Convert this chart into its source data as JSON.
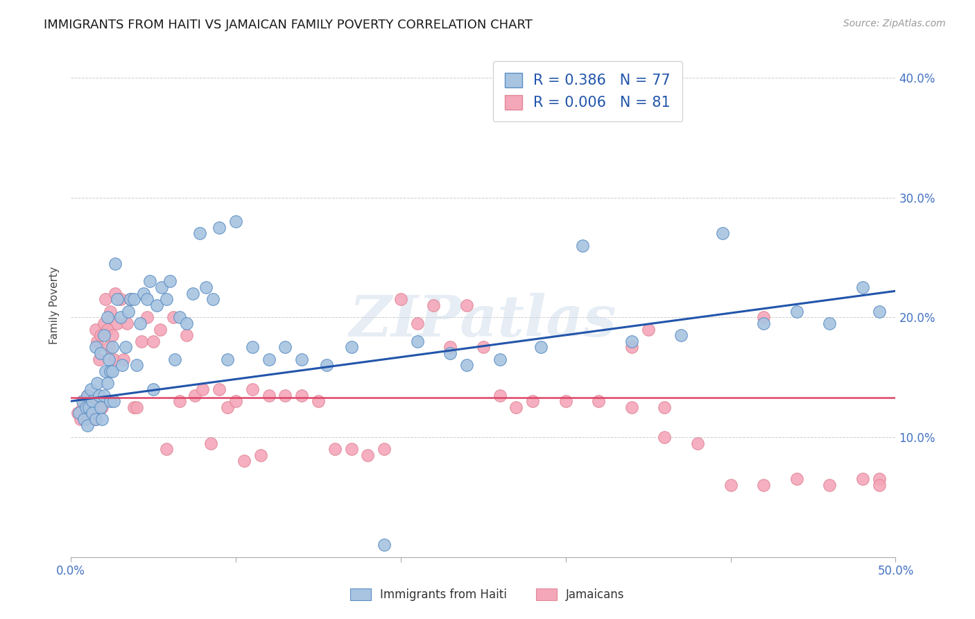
{
  "title": "IMMIGRANTS FROM HAITI VS JAMAICAN FAMILY POVERTY CORRELATION CHART",
  "source": "Source: ZipAtlas.com",
  "ylabel": "Family Poverty",
  "legend_label_blue": "Immigrants from Haiti",
  "legend_label_pink": "Jamaicans",
  "watermark": "ZIPatlas",
  "R_blue": 0.386,
  "N_blue": 77,
  "R_pink": 0.006,
  "N_pink": 81,
  "xlim": [
    0.0,
    0.5
  ],
  "ylim": [
    0.0,
    0.42
  ],
  "yticks": [
    0.1,
    0.2,
    0.3,
    0.4
  ],
  "ytick_labels": [
    "10.0%",
    "20.0%",
    "30.0%",
    "40.0%"
  ],
  "xticks": [
    0.0,
    0.1,
    0.2,
    0.3,
    0.4,
    0.5
  ],
  "xtick_labels": [
    "0.0%",
    "",
    "",
    "",
    "",
    "50.0%"
  ],
  "color_blue": "#a8c4e0",
  "color_pink": "#f4a7b9",
  "edge_blue": "#5b8ec4",
  "edge_pink": "#e08898",
  "line_color_blue": "#2255aa",
  "line_color_pink": "#dd4466",
  "axis_color": "#4472c4",
  "background_color": "#ffffff",
  "grid_color": "#cccccc",
  "blue_line_start_y": 0.13,
  "blue_line_end_y": 0.222,
  "pink_line_y": 0.133,
  "blue_points_x": [
    0.005,
    0.007,
    0.008,
    0.009,
    0.01,
    0.01,
    0.011,
    0.012,
    0.013,
    0.013,
    0.015,
    0.015,
    0.016,
    0.017,
    0.018,
    0.018,
    0.019,
    0.02,
    0.02,
    0.021,
    0.022,
    0.022,
    0.023,
    0.024,
    0.024,
    0.025,
    0.025,
    0.026,
    0.027,
    0.028,
    0.03,
    0.031,
    0.033,
    0.035,
    0.036,
    0.038,
    0.04,
    0.042,
    0.044,
    0.046,
    0.048,
    0.05,
    0.052,
    0.055,
    0.058,
    0.06,
    0.063,
    0.066,
    0.07,
    0.074,
    0.078,
    0.082,
    0.086,
    0.09,
    0.095,
    0.1,
    0.11,
    0.12,
    0.13,
    0.14,
    0.155,
    0.17,
    0.19,
    0.21,
    0.23,
    0.26,
    0.285,
    0.31,
    0.34,
    0.37,
    0.395,
    0.42,
    0.44,
    0.46,
    0.48,
    0.49,
    0.24
  ],
  "blue_points_y": [
    0.12,
    0.13,
    0.115,
    0.125,
    0.135,
    0.11,
    0.125,
    0.14,
    0.13,
    0.12,
    0.175,
    0.115,
    0.145,
    0.135,
    0.17,
    0.125,
    0.115,
    0.185,
    0.135,
    0.155,
    0.2,
    0.145,
    0.165,
    0.155,
    0.13,
    0.175,
    0.155,
    0.13,
    0.245,
    0.215,
    0.2,
    0.16,
    0.175,
    0.205,
    0.215,
    0.215,
    0.16,
    0.195,
    0.22,
    0.215,
    0.23,
    0.14,
    0.21,
    0.225,
    0.215,
    0.23,
    0.165,
    0.2,
    0.195,
    0.22,
    0.27,
    0.225,
    0.215,
    0.275,
    0.165,
    0.28,
    0.175,
    0.165,
    0.175,
    0.165,
    0.16,
    0.175,
    0.01,
    0.18,
    0.17,
    0.165,
    0.175,
    0.26,
    0.18,
    0.185,
    0.27,
    0.195,
    0.205,
    0.195,
    0.225,
    0.205,
    0.16
  ],
  "pink_points_x": [
    0.004,
    0.006,
    0.007,
    0.008,
    0.009,
    0.01,
    0.011,
    0.012,
    0.013,
    0.014,
    0.015,
    0.015,
    0.016,
    0.017,
    0.018,
    0.019,
    0.02,
    0.021,
    0.022,
    0.023,
    0.024,
    0.025,
    0.026,
    0.027,
    0.028,
    0.03,
    0.032,
    0.034,
    0.036,
    0.038,
    0.04,
    0.043,
    0.046,
    0.05,
    0.054,
    0.058,
    0.062,
    0.066,
    0.07,
    0.075,
    0.08,
    0.085,
    0.09,
    0.095,
    0.1,
    0.105,
    0.11,
    0.115,
    0.12,
    0.13,
    0.14,
    0.15,
    0.16,
    0.17,
    0.18,
    0.19,
    0.2,
    0.21,
    0.22,
    0.23,
    0.24,
    0.25,
    0.26,
    0.27,
    0.28,
    0.3,
    0.32,
    0.34,
    0.36,
    0.38,
    0.4,
    0.42,
    0.44,
    0.46,
    0.48,
    0.49,
    0.34,
    0.35,
    0.36,
    0.42,
    0.49
  ],
  "pink_points_y": [
    0.12,
    0.115,
    0.125,
    0.13,
    0.115,
    0.135,
    0.125,
    0.13,
    0.12,
    0.115,
    0.19,
    0.115,
    0.18,
    0.165,
    0.185,
    0.125,
    0.195,
    0.215,
    0.19,
    0.175,
    0.205,
    0.185,
    0.165,
    0.22,
    0.195,
    0.215,
    0.165,
    0.195,
    0.215,
    0.125,
    0.125,
    0.18,
    0.2,
    0.18,
    0.19,
    0.09,
    0.2,
    0.13,
    0.185,
    0.135,
    0.14,
    0.095,
    0.14,
    0.125,
    0.13,
    0.08,
    0.14,
    0.085,
    0.135,
    0.135,
    0.135,
    0.13,
    0.09,
    0.09,
    0.085,
    0.09,
    0.215,
    0.195,
    0.21,
    0.175,
    0.21,
    0.175,
    0.135,
    0.125,
    0.13,
    0.13,
    0.13,
    0.125,
    0.125,
    0.095,
    0.06,
    0.06,
    0.065,
    0.06,
    0.065,
    0.065,
    0.175,
    0.19,
    0.1,
    0.2,
    0.06
  ]
}
